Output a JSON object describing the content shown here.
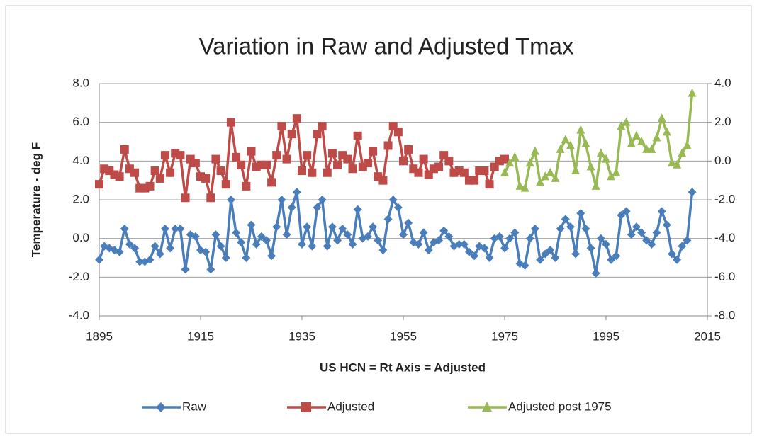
{
  "chart_data": {
    "type": "line",
    "title": "Variation in Raw and Adjusted Tmax",
    "y_label": "Temperature - deg F",
    "x_label": "US HCN = Rt Axis = Adjusted",
    "x": [
      1895,
      1896,
      1897,
      1898,
      1899,
      1900,
      1901,
      1902,
      1903,
      1904,
      1905,
      1906,
      1907,
      1908,
      1909,
      1910,
      1911,
      1912,
      1913,
      1914,
      1915,
      1916,
      1917,
      1918,
      1919,
      1920,
      1921,
      1922,
      1923,
      1924,
      1925,
      1926,
      1927,
      1928,
      1929,
      1930,
      1931,
      1932,
      1933,
      1934,
      1935,
      1936,
      1937,
      1938,
      1939,
      1940,
      1941,
      1942,
      1943,
      1944,
      1945,
      1946,
      1947,
      1948,
      1949,
      1950,
      1951,
      1952,
      1953,
      1954,
      1955,
      1956,
      1957,
      1958,
      1959,
      1960,
      1961,
      1962,
      1963,
      1964,
      1965,
      1966,
      1967,
      1968,
      1969,
      1970,
      1971,
      1972,
      1973,
      1974,
      1975,
      1976,
      1977,
      1978,
      1979,
      1980,
      1981,
      1982,
      1983,
      1984,
      1985,
      1986,
      1987,
      1988,
      1989,
      1990,
      1991,
      1992,
      1993,
      1994,
      1995,
      1996,
      1997,
      1998,
      1999,
      2000,
      2001,
      2002,
      2003,
      2004,
      2005,
      2006,
      2007,
      2008,
      2009,
      2010,
      2011,
      2012
    ],
    "series": [
      {
        "name": "Raw",
        "color": "#4a7ebb",
        "marker": "diamond",
        "values": [
          -1.1,
          -0.4,
          -0.5,
          -0.6,
          -0.7,
          0.5,
          -0.3,
          -0.5,
          -1.2,
          -1.2,
          -1.1,
          -0.4,
          -0.8,
          0.5,
          -0.5,
          0.5,
          0.5,
          -1.6,
          0.2,
          0.1,
          -0.6,
          -0.7,
          -1.6,
          0.2,
          -0.4,
          -1.0,
          2.0,
          0.3,
          -0.2,
          -1.0,
          0.7,
          -0.3,
          0.1,
          -0.1,
          -0.9,
          0.6,
          2.0,
          0.2,
          1.6,
          2.4,
          -0.3,
          0.6,
          -0.4,
          1.6,
          2.0,
          -0.4,
          0.6,
          -0.1,
          0.5,
          0.2,
          -0.3,
          1.5,
          0.0,
          0.1,
          0.6,
          -0.1,
          -0.6,
          1.0,
          2.0,
          1.6,
          0.2,
          0.8,
          -0.2,
          -0.3,
          0.3,
          -0.6,
          -0.2,
          -0.1,
          0.4,
          0.1,
          -0.4,
          -0.3,
          -0.3,
          -0.7,
          -0.9,
          -0.4,
          -0.5,
          -1.0,
          0.0,
          0.1,
          -0.5,
          0.0,
          0.3,
          -1.3,
          -1.4,
          0.0,
          0.5,
          -1.1,
          -0.8,
          -0.6,
          -1.0,
          0.5,
          1.0,
          0.6,
          -0.8,
          1.3,
          0.5,
          -0.5,
          -1.8,
          0.0,
          -0.3,
          -1.1,
          -0.9,
          1.2,
          1.4,
          0.2,
          0.6,
          0.3,
          -0.1,
          -0.3,
          0.3,
          1.4,
          0.7,
          -0.8,
          -1.1,
          -0.4,
          -0.1,
          2.4
        ]
      },
      {
        "name": "Adjusted",
        "color": "#be4b48",
        "marker": "square",
        "axis": "y2",
        "values": [
          -1.2,
          -0.4,
          -0.5,
          -0.7,
          -0.8,
          0.6,
          -0.4,
          -0.6,
          -1.4,
          -1.4,
          -1.3,
          -0.5,
          -0.9,
          0.3,
          -0.6,
          0.4,
          0.3,
          -1.9,
          0.1,
          -0.1,
          -0.8,
          -0.9,
          -1.9,
          0.1,
          -0.5,
          -1.2,
          2.0,
          0.2,
          -0.2,
          -1.3,
          0.5,
          -0.3,
          -0.2,
          -0.2,
          -1.1,
          0.3,
          1.8,
          0.1,
          1.4,
          2.2,
          -0.5,
          0.3,
          -0.6,
          1.4,
          1.8,
          -0.6,
          0.4,
          -0.2,
          0.3,
          0.1,
          -0.4,
          1.3,
          -0.3,
          -0.1,
          0.5,
          -0.8,
          -1.0,
          0.8,
          1.8,
          1.5,
          0.0,
          0.6,
          -0.4,
          -0.6,
          0.1,
          -0.7,
          -0.4,
          -0.3,
          0.3,
          0.0,
          -0.6,
          -0.5,
          -0.6,
          -1.0,
          -1.0,
          -0.5,
          -0.5,
          -1.2,
          -0.3,
          0.0,
          0.1,
          null,
          null,
          null,
          null,
          null,
          null,
          null,
          null,
          null,
          null,
          null,
          null,
          null,
          null,
          null,
          null,
          null,
          null,
          null,
          null,
          null,
          null,
          null,
          null,
          null,
          null,
          null,
          null,
          null,
          null,
          null,
          null,
          null,
          null,
          null,
          null,
          null
        ]
      },
      {
        "name": "Adjusted post 1975",
        "color": "#98b954",
        "marker": "triangle",
        "axis": "y2",
        "values": [
          null,
          null,
          null,
          null,
          null,
          null,
          null,
          null,
          null,
          null,
          null,
          null,
          null,
          null,
          null,
          null,
          null,
          null,
          null,
          null,
          null,
          null,
          null,
          null,
          null,
          null,
          null,
          null,
          null,
          null,
          null,
          null,
          null,
          null,
          null,
          null,
          null,
          null,
          null,
          null,
          null,
          null,
          null,
          null,
          null,
          null,
          null,
          null,
          null,
          null,
          null,
          null,
          null,
          null,
          null,
          null,
          null,
          null,
          null,
          null,
          null,
          null,
          null,
          null,
          null,
          null,
          null,
          null,
          null,
          null,
          null,
          null,
          null,
          null,
          null,
          null,
          null,
          null,
          null,
          null,
          -0.6,
          -0.1,
          0.2,
          -1.3,
          -1.4,
          -0.1,
          0.5,
          -1.1,
          -0.8,
          -0.6,
          -0.9,
          0.6,
          1.1,
          0.8,
          -0.5,
          1.6,
          0.9,
          -0.3,
          -1.3,
          0.4,
          0.1,
          -0.8,
          -0.6,
          1.8,
          2.0,
          0.9,
          1.3,
          1.0,
          0.6,
          0.6,
          1.2,
          2.2,
          1.5,
          -0.1,
          -0.2,
          0.4,
          0.8,
          3.5
        ]
      }
    ],
    "xlim": [
      1895,
      2015
    ],
    "xticks": [
      1895,
      1915,
      1935,
      1955,
      1975,
      1995,
      2015
    ],
    "ylim": [
      -4,
      8
    ],
    "yticks": [
      {
        "value": -4,
        "label": "-4.0"
      },
      {
        "value": -2,
        "label": "-2.0"
      },
      {
        "value": 0,
        "label": "0.0"
      },
      {
        "value": 2,
        "label": "2.0"
      },
      {
        "value": 4,
        "label": "4.0"
      },
      {
        "value": 6,
        "label": "6.0"
      },
      {
        "value": 8,
        "label": "8.0"
      }
    ],
    "y2lim": [
      -8,
      4
    ],
    "y2ticks": [
      {
        "value": -8,
        "label": "-8.0"
      },
      {
        "value": -6,
        "label": "-6.0"
      },
      {
        "value": -4,
        "label": "-4.0"
      },
      {
        "value": -2,
        "label": "-2.0"
      },
      {
        "value": 0,
        "label": "0.0"
      },
      {
        "value": 2,
        "label": "2.0"
      },
      {
        "value": 4,
        "label": "4.0"
      }
    ],
    "grid": true,
    "legend": "bottom"
  }
}
